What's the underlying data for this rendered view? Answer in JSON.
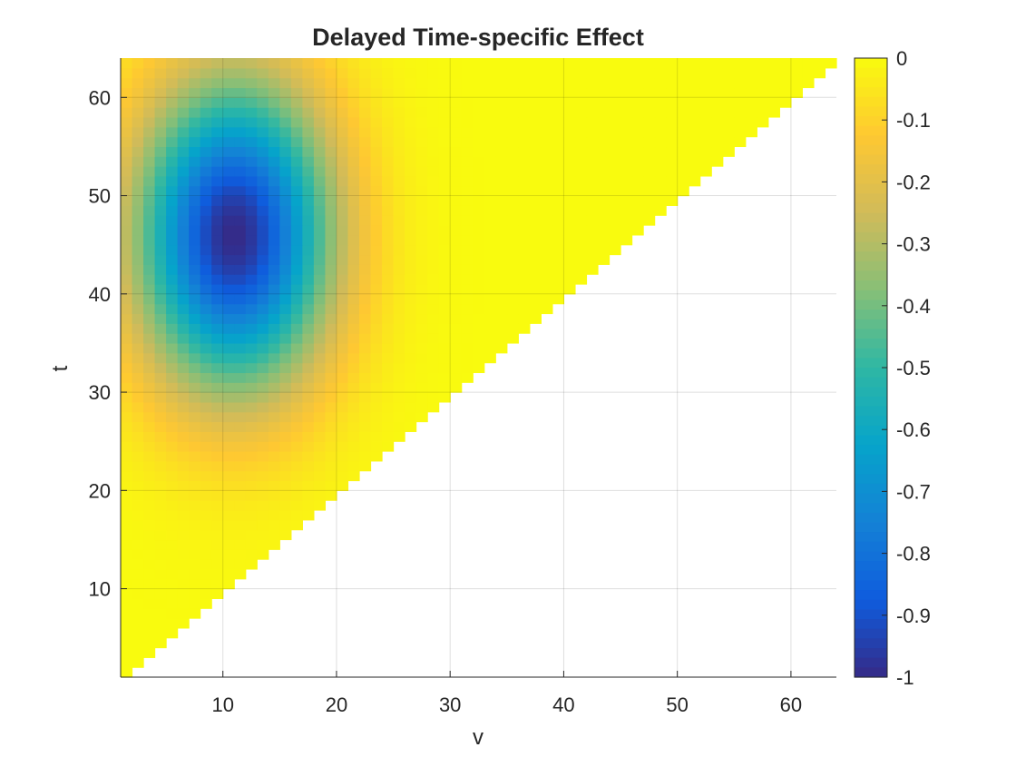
{
  "chart_data": {
    "type": "heatmap",
    "title": "Delayed Time-specific Effect",
    "xlabel": "v",
    "ylabel": "t",
    "xlim": [
      1,
      64
    ],
    "ylim": [
      1,
      64
    ],
    "x_ticks": [
      "10",
      "20",
      "30",
      "40",
      "50",
      "60"
    ],
    "y_ticks": [
      "10",
      "20",
      "30",
      "40",
      "50",
      "60"
    ],
    "grid": true,
    "domain": "defined only where v <= t (lower-right triangle blank)",
    "surface": {
      "formula": "-exp(-((v - v0)^2 / (2*sv^2) + (t - t0)^2 / (2*st^2)))",
      "peak_value": -1,
      "v0": 11,
      "t0": 46,
      "sv": 6,
      "st": 11
    },
    "colorbar": {
      "range": [
        -1,
        0
      ],
      "tick_labels": [
        "0",
        "-0.1",
        "-0.2",
        "-0.3",
        "-0.4",
        "-0.5",
        "-0.6",
        "-0.7",
        "-0.8",
        "-0.9",
        "-1"
      ],
      "colormap": "parula",
      "colormap_stops": [
        "#352a87",
        "#0f5cdd",
        "#1481d6",
        "#06a4ca",
        "#2eb7a4",
        "#87bf77",
        "#d1bb59",
        "#fec832",
        "#f9fb0e"
      ]
    }
  }
}
